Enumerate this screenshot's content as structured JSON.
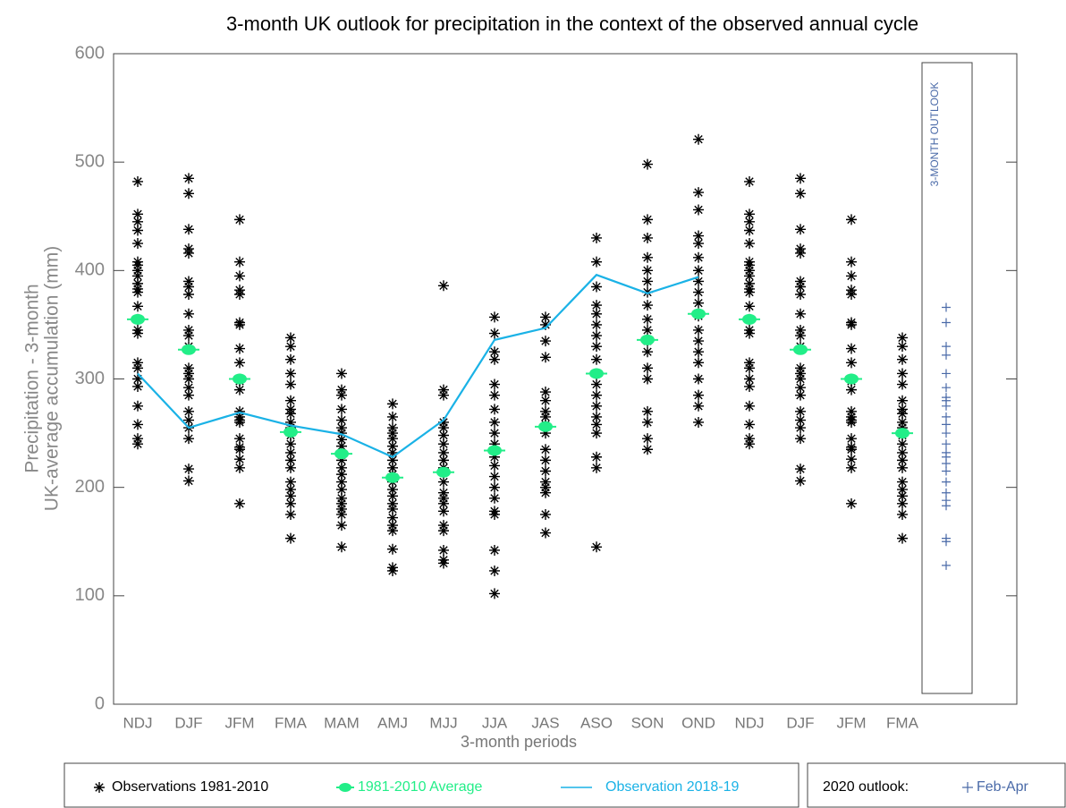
{
  "chart_data": {
    "type": "strip",
    "title": "3-month UK outlook for precipitation in the context of the observed annual cycle",
    "x_label": "3-month periods",
    "y_label": [
      "Precipitation - 3-month",
      "UK-average accumulation (mm)"
    ],
    "categories": [
      "NDJ",
      "DJF",
      "JFM",
      "FMA",
      "MAM",
      "AMJ",
      "MJJ",
      "JJA",
      "JAS",
      "ASO",
      "SON",
      "OND",
      "NDJ",
      "DJF",
      "JFM",
      "FMA"
    ],
    "ylim": [
      0,
      600
    ],
    "yticks": [
      0,
      100,
      200,
      300,
      400,
      500,
      600
    ],
    "series": [
      {
        "name": "Observations 1981-2010",
        "color": "#000000",
        "marker": "asterisk",
        "values": [
          [
            482,
            452,
            445,
            437,
            425,
            408,
            405,
            400,
            395,
            388,
            383,
            380,
            367,
            355,
            345,
            342,
            315,
            310,
            300,
            293,
            275,
            258,
            245,
            240
          ],
          [
            485,
            471,
            438,
            420,
            416,
            390,
            385,
            378,
            360,
            345,
            340,
            330,
            310,
            305,
            300,
            292,
            285,
            270,
            262,
            255,
            245,
            217,
            206
          ],
          [
            447,
            408,
            395,
            382,
            378,
            352,
            350,
            328,
            315,
            300,
            298,
            290,
            270,
            265,
            262,
            260,
            245,
            237,
            235,
            226,
            218,
            185
          ],
          [
            338,
            330,
            318,
            305,
            295,
            280,
            272,
            268,
            260,
            255,
            248,
            240,
            232,
            225,
            218,
            205,
            198,
            192,
            185,
            175,
            153
          ],
          [
            305,
            290,
            285,
            272,
            262,
            255,
            250,
            244,
            238,
            230,
            225,
            218,
            212,
            205,
            198,
            190,
            185,
            180,
            175,
            165,
            145
          ],
          [
            277,
            265,
            255,
            250,
            245,
            238,
            232,
            225,
            218,
            212,
            205,
            198,
            192,
            185,
            180,
            172,
            165,
            160,
            143,
            126,
            123
          ],
          [
            386,
            290,
            285,
            260,
            255,
            248,
            240,
            232,
            225,
            218,
            205,
            195,
            190,
            185,
            178,
            165,
            160,
            142,
            133,
            130
          ],
          [
            357,
            342,
            325,
            318,
            295,
            285,
            272,
            260,
            250,
            240,
            228,
            220,
            210,
            200,
            190,
            178,
            175,
            142,
            123,
            102
          ],
          [
            357,
            350,
            335,
            320,
            288,
            280,
            270,
            265,
            258,
            250,
            235,
            225,
            215,
            205,
            200,
            195,
            175,
            158
          ],
          [
            430,
            408,
            385,
            368,
            360,
            350,
            340,
            330,
            318,
            305,
            295,
            285,
            275,
            265,
            258,
            250,
            228,
            218,
            145
          ],
          [
            498,
            447,
            430,
            412,
            400,
            390,
            380,
            368,
            355,
            345,
            335,
            325,
            310,
            300,
            270,
            260,
            245,
            235
          ],
          [
            521,
            472,
            456,
            432,
            425,
            412,
            400,
            390,
            380,
            370,
            358,
            345,
            335,
            325,
            315,
            300,
            285,
            275,
            260
          ],
          [
            482,
            452,
            445,
            437,
            425,
            408,
            405,
            400,
            395,
            388,
            383,
            380,
            367,
            355,
            345,
            342,
            315,
            310,
            300,
            293,
            275,
            258,
            245,
            240
          ],
          [
            485,
            471,
            438,
            420,
            416,
            390,
            385,
            378,
            360,
            345,
            340,
            330,
            310,
            305,
            300,
            292,
            285,
            270,
            262,
            255,
            245,
            217,
            206
          ],
          [
            447,
            408,
            395,
            382,
            378,
            352,
            350,
            328,
            315,
            300,
            298,
            290,
            270,
            265,
            262,
            260,
            245,
            237,
            235,
            226,
            218,
            185
          ],
          [
            338,
            330,
            318,
            305,
            295,
            280,
            272,
            268,
            260,
            255,
            248,
            240,
            232,
            225,
            218,
            205,
            198,
            192,
            185,
            175,
            153
          ]
        ]
      },
      {
        "name": "1981-2010 Average",
        "color": "#22ee88",
        "marker": "dot",
        "values": [
          355,
          327,
          300,
          251,
          231,
          209,
          214,
          234,
          256,
          305,
          336,
          360,
          355,
          327,
          300,
          250
        ]
      },
      {
        "name": "Observation 2018-19",
        "color": "#1ab2e6",
        "marker": "line",
        "values": [
          305,
          255,
          269,
          257,
          249,
          228,
          262,
          336,
          347,
          396,
          379,
          394,
          null,
          null,
          null,
          null
        ]
      }
    ],
    "outlook": {
      "label": "3-MONTH OUTLOOK",
      "legend_title": "2020 outlook:",
      "name": "Feb-Apr",
      "color": "#4a6aa8",
      "values": [
        366,
        352,
        330,
        322,
        305,
        292,
        283,
        280,
        275,
        265,
        258,
        250,
        240,
        232,
        228,
        222,
        215,
        205,
        195,
        188,
        183,
        153,
        150,
        128
      ]
    }
  }
}
